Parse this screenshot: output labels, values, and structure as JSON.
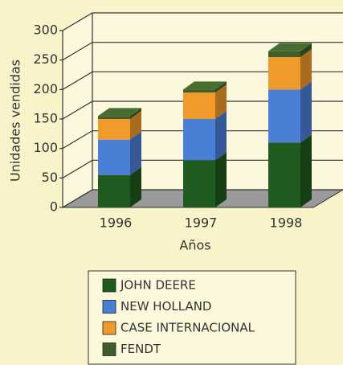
{
  "chart_data": {
    "type": "bar3d_stacked",
    "ylabel": "Unidades vendidas",
    "xlabel": "Años",
    "categories": [
      "1996",
      "1997",
      "1998"
    ],
    "series": [
      {
        "name": "JOHN DEERE",
        "color": "#1f5a1f",
        "values": [
          55,
          80,
          110
        ]
      },
      {
        "name": "NEW HOLLAND",
        "color": "#4a7fd6",
        "values": [
          60,
          70,
          90
        ]
      },
      {
        "name": "CASE INTERNACIONAL",
        "color": "#f09a2c",
        "values": [
          35,
          45,
          55
        ]
      },
      {
        "name": "FENDT",
        "color": "#3e5f2a",
        "values": [
          5,
          5,
          10
        ]
      }
    ],
    "ylim": [
      0,
      300
    ],
    "yticks": [
      0,
      50,
      100,
      150,
      200,
      250,
      300
    ],
    "grid": true
  }
}
